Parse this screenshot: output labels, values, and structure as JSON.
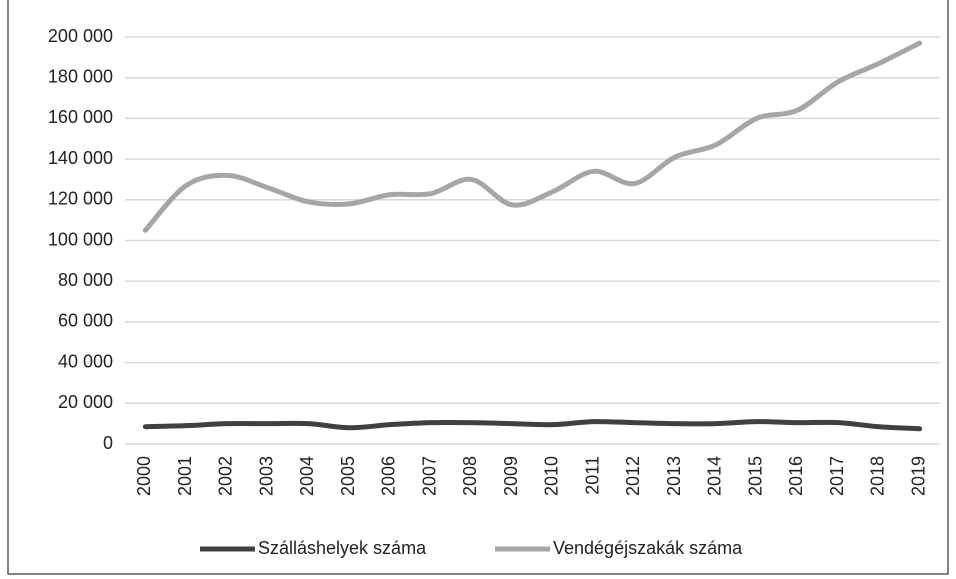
{
  "chart_data": {
    "type": "line",
    "categories": [
      "2000",
      "2001",
      "2002",
      "2003",
      "2004",
      "2005",
      "2006",
      "2007",
      "2008",
      "2009",
      "2010",
      "2011",
      "2012",
      "2013",
      "2014",
      "2015",
      "2016",
      "2017",
      "2018",
      "2019"
    ],
    "series": [
      {
        "name": "Szálláshelyek száma",
        "color": "#404040",
        "values": [
          8500,
          9000,
          10000,
          10000,
          10000,
          8000,
          9500,
          10500,
          10500,
          10000,
          9500,
          11000,
          10500,
          10000,
          10000,
          11000,
          10500,
          10500,
          8500,
          7500
        ]
      },
      {
        "name": "Vendégéjszakák száma",
        "color": "#a6a6a6",
        "values": [
          105000,
          127000,
          132000,
          126000,
          119000,
          118000,
          122500,
          123000,
          130000,
          117500,
          124000,
          134000,
          128000,
          141000,
          147000,
          160000,
          164000,
          178000,
          187000,
          197000
        ]
      }
    ],
    "ylim": [
      0,
      200000
    ],
    "yticks": [
      0,
      {
        "value": 20000,
        "label": "20 000"
      },
      {
        "value": 40000,
        "label": "40 000"
      },
      {
        "value": 60000,
        "label": "60 000"
      },
      {
        "value": 80000,
        "label": "80 000"
      },
      {
        "value": 100000,
        "label": "100 000"
      },
      {
        "value": 120000,
        "label": "120 000"
      },
      {
        "value": 140000,
        "label": "140 000"
      },
      {
        "value": 160000,
        "label": "160 000"
      },
      {
        "value": 180000,
        "label": "180 000"
      },
      {
        "value": 200000,
        "label": "200 000"
      }
    ],
    "grid": true,
    "legend": "bottom"
  }
}
